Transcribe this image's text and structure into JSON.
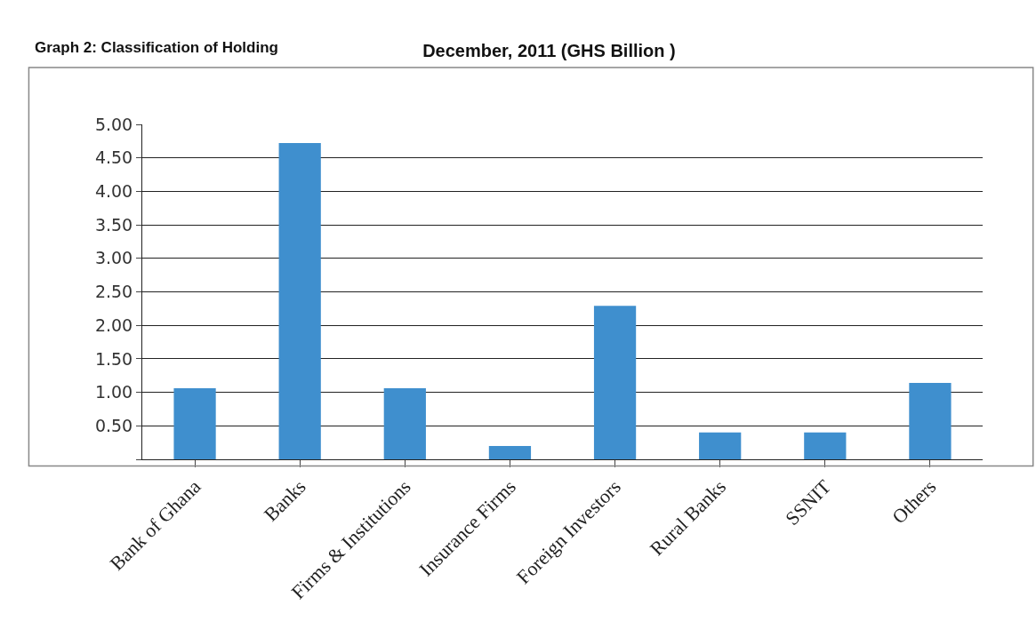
{
  "chart_data": {
    "type": "bar",
    "title": "December, 2011 (GHS Billion )",
    "annotations": [
      "Graph 2: Classification of Holding"
    ],
    "categories": [
      "Bank of Ghana",
      "Banks",
      "Firms & Institutions",
      "Insurance Firms",
      "Foreign Investors",
      "Rural Banks",
      "SSNIT",
      "Others"
    ],
    "values": [
      1.06,
      4.72,
      1.06,
      0.2,
      2.29,
      0.4,
      0.4,
      1.14
    ],
    "color": "#3f8fce",
    "ylim": [
      0,
      5
    ],
    "yticks": [
      {
        "value": 0,
        "label": null
      },
      {
        "value": 0.5,
        "label": "0.50"
      },
      {
        "value": 1,
        "label": "1.00"
      },
      {
        "value": 1.5,
        "label": "1.50"
      },
      {
        "value": 2,
        "label": "2.00"
      },
      {
        "value": 2.5,
        "label": "2.50"
      },
      {
        "value": 3,
        "label": "3.00"
      },
      {
        "value": 3.5,
        "label": "3.50"
      },
      {
        "value": 4,
        "label": "4.00"
      },
      {
        "value": 4.5,
        "label": "4.50"
      },
      {
        "value": 5,
        "label": "5.00"
      }
    ],
    "grid": "y"
  }
}
